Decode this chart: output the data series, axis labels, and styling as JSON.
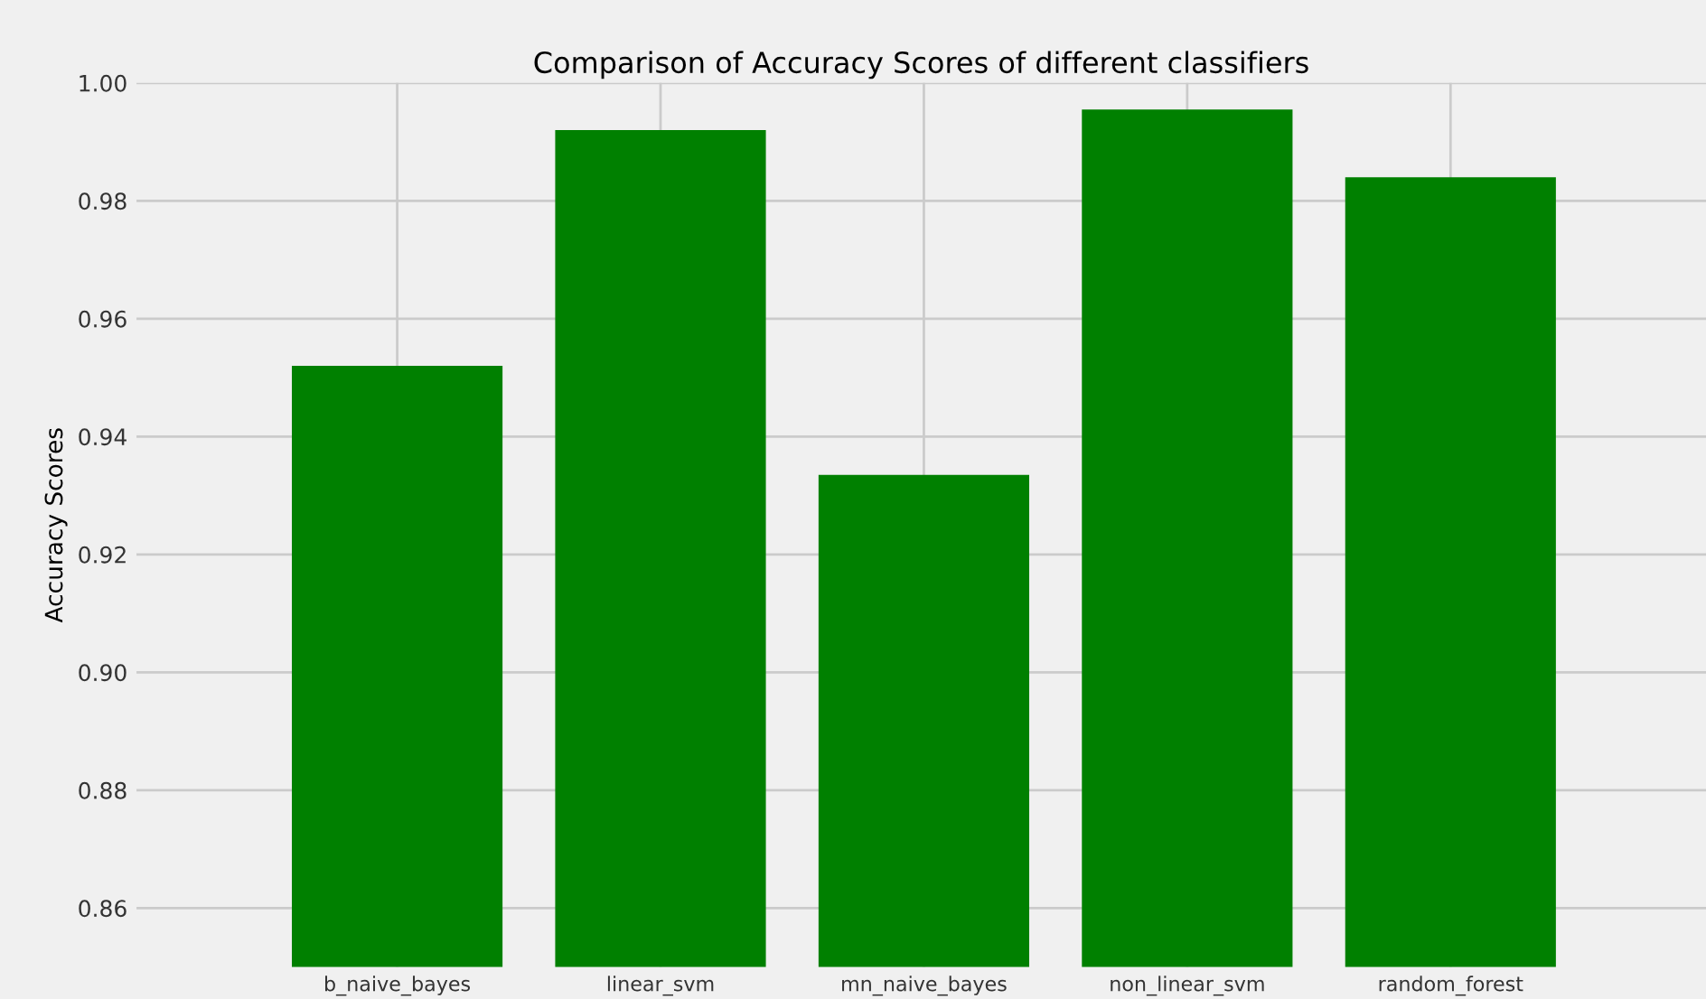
{
  "chart_data": {
    "type": "bar",
    "title": "Comparison of Accuracy Scores of different classifiers",
    "ylabel": "Accuracy Scores",
    "categories": [
      "b_naive_bayes",
      "linear_svm",
      "mn_naive_bayes",
      "non_linear_svm",
      "random_forest"
    ],
    "values": [
      0.952,
      0.992,
      0.9335,
      0.9955,
      0.984
    ],
    "color": "#008000",
    "ylim": [
      0.85,
      1.0
    ],
    "yticks": [
      {
        "value": 0.86,
        "label": "0.86"
      },
      {
        "value": 0.88,
        "label": "0.88"
      },
      {
        "value": 0.9,
        "label": "0.90"
      },
      {
        "value": 0.92,
        "label": "0.92"
      },
      {
        "value": 0.94,
        "label": "0.94"
      },
      {
        "value": 0.96,
        "label": "0.96"
      },
      {
        "value": 0.98,
        "label": "0.98"
      },
      {
        "value": 1.0,
        "label": "1.00"
      }
    ],
    "grid": true
  }
}
